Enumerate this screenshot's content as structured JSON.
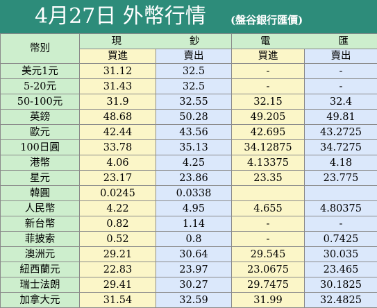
{
  "header": {
    "title": "4月27日 外幣行情",
    "subtitle": "(盤谷銀行匯價)"
  },
  "table": {
    "currency_header": "幣別",
    "group_cash_chars": [
      "現",
      "鈔"
    ],
    "group_wire_chars": [
      "電",
      "匯"
    ],
    "sub_headers": [
      "買進",
      "賣出",
      "買進",
      "賣出"
    ],
    "rows": [
      {
        "currency": "美元1元",
        "cash_buy": "31.12",
        "cash_sell": "32.5",
        "wire_buy": "-",
        "wire_sell": "-"
      },
      {
        "currency": "5-20元",
        "cash_buy": "31.43",
        "cash_sell": "32.5",
        "wire_buy": "-",
        "wire_sell": "-"
      },
      {
        "currency": "50-100元",
        "cash_buy": "31.9",
        "cash_sell": "32.55",
        "wire_buy": "32.15",
        "wire_sell": "32.4"
      },
      {
        "currency": "英鎊",
        "cash_buy": "48.68",
        "cash_sell": "50.28",
        "wire_buy": "49.205",
        "wire_sell": "49.81"
      },
      {
        "currency": "歐元",
        "cash_buy": "42.44",
        "cash_sell": "43.56",
        "wire_buy": "42.695",
        "wire_sell": "43.2725"
      },
      {
        "currency": "100日圓",
        "cash_buy": "33.78",
        "cash_sell": "35.13",
        "wire_buy": "34.12875",
        "wire_sell": "34.7275"
      },
      {
        "currency": "港幣",
        "cash_buy": "4.06",
        "cash_sell": "4.25",
        "wire_buy": "4.13375",
        "wire_sell": "4.18"
      },
      {
        "currency": "星元",
        "cash_buy": "23.17",
        "cash_sell": "23.86",
        "wire_buy": "23.35",
        "wire_sell": "23.775"
      },
      {
        "currency": "韓圓",
        "cash_buy": "0.0245",
        "cash_sell": "0.0338",
        "wire_buy": "",
        "wire_sell": ""
      },
      {
        "currency": "人民幣",
        "cash_buy": "4.22",
        "cash_sell": "4.95",
        "wire_buy": "4.655",
        "wire_sell": "4.80375"
      },
      {
        "currency": "新台幣",
        "cash_buy": "0.82",
        "cash_sell": "1.14",
        "wire_buy": "-",
        "wire_sell": "-"
      },
      {
        "currency": "菲披索",
        "cash_buy": "0.52",
        "cash_sell": "0.8",
        "wire_buy": "-",
        "wire_sell": "0.7425"
      },
      {
        "currency": "澳洲元",
        "cash_buy": "29.21",
        "cash_sell": "30.64",
        "wire_buy": "29.545",
        "wire_sell": "30.035"
      },
      {
        "currency": "紐西蘭元",
        "cash_buy": "22.83",
        "cash_sell": "23.97",
        "wire_buy": "23.0675",
        "wire_sell": "23.465"
      },
      {
        "currency": "瑞士法朗",
        "cash_buy": "29.41",
        "cash_sell": "30.27",
        "wire_buy": "29.7475",
        "wire_sell": "30.1825"
      },
      {
        "currency": "加拿大元",
        "cash_buy": "31.54",
        "cash_sell": "32.59",
        "wire_buy": "31.99",
        "wire_sell": "32.4825"
      }
    ]
  },
  "colors": {
    "header_bg": "#2d8c7a",
    "currency_col": "#cdeecd",
    "buy_col": "#fbf6c8",
    "sell_col": "#dbe8fb"
  }
}
